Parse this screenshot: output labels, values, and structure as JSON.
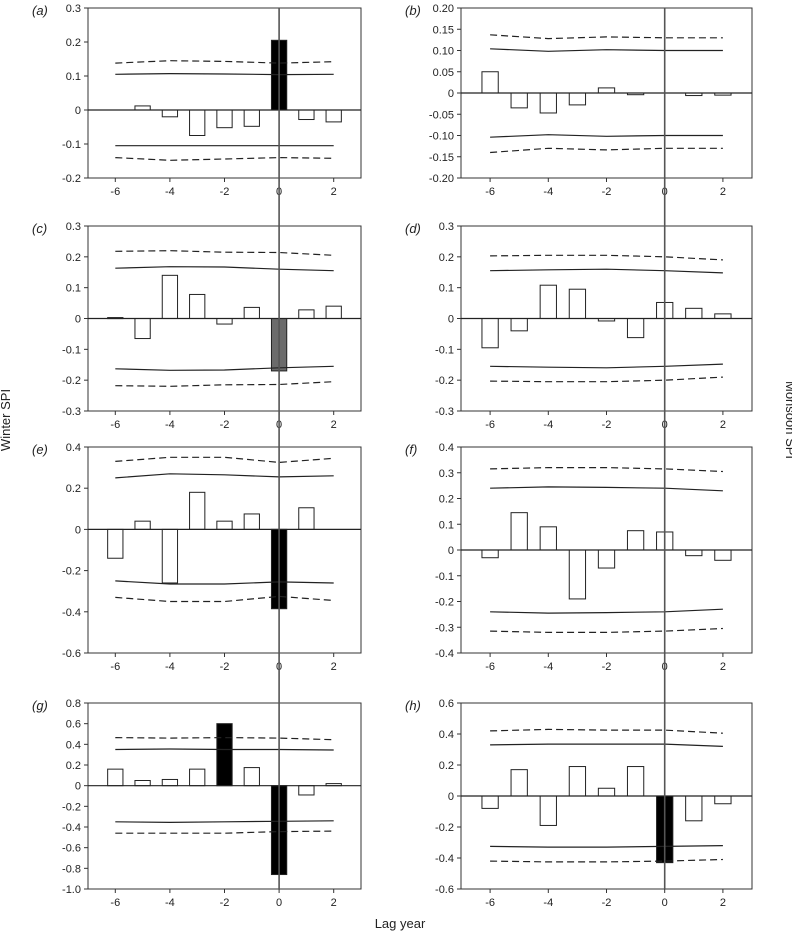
{
  "figure": {
    "ylabel_left": "Winter SPI",
    "ylabel_right": "Monsoon SPI",
    "xlabel": "Lag year"
  },
  "chart_data": [
    {
      "type": "bar",
      "panel_label": "(a)",
      "column": "left",
      "xticks": [
        -6,
        -4,
        -2,
        0,
        2
      ],
      "ylim": [
        -0.2,
        0.3
      ],
      "yticks": [
        -0.2,
        -0.1,
        0,
        0.1,
        0.2,
        0.3
      ],
      "ytick_labels": [
        "-0.2",
        "-0.1",
        "0",
        "0.1",
        "0.2",
        "0.3"
      ],
      "lags": [
        -5,
        -4,
        -3,
        -2,
        -1,
        0,
        1,
        2
      ],
      "values": [
        0.012,
        -0.02,
        -0.075,
        -0.052,
        -0.048,
        0.205,
        -0.028,
        -0.035
      ],
      "bar_colors": [
        "#ffffff",
        "#ffffff",
        "#ffffff",
        "#ffffff",
        "#ffffff",
        "#000000",
        "#ffffff",
        "#ffffff"
      ],
      "ci95_upper": [
        [
          -6,
          0.105
        ],
        [
          -4,
          0.107
        ],
        [
          -2,
          0.106
        ],
        [
          0,
          0.104
        ],
        [
          2,
          0.105
        ]
      ],
      "ci95_lower": [
        [
          -6,
          -0.105
        ],
        [
          -4,
          -0.105
        ],
        [
          -2,
          -0.105
        ],
        [
          0,
          -0.105
        ],
        [
          2,
          -0.105
        ]
      ],
      "ci99_upper": [
        [
          -6,
          0.138
        ],
        [
          -4,
          0.145
        ],
        [
          -2,
          0.143
        ],
        [
          0,
          0.138
        ],
        [
          2,
          0.142
        ]
      ],
      "ci99_lower": [
        [
          -6,
          -0.14
        ],
        [
          -4,
          -0.148
        ],
        [
          -2,
          -0.144
        ],
        [
          0,
          -0.14
        ],
        [
          2,
          -0.142
        ]
      ]
    },
    {
      "type": "bar",
      "panel_label": "(b)",
      "column": "right",
      "xticks": [
        -6,
        -4,
        -2,
        0,
        2
      ],
      "ylim": [
        -0.2,
        0.2
      ],
      "yticks": [
        -0.2,
        -0.15,
        -0.1,
        -0.05,
        0,
        0.05,
        0.1,
        0.15,
        0.2
      ],
      "ytick_labels": [
        "-0.20",
        "-0.15",
        "-0.10",
        "-0.05",
        "0",
        "0.05",
        "0.10",
        "0.15",
        "0.20"
      ],
      "lags": [
        -6,
        -5,
        -4,
        -3,
        -2,
        -1,
        0,
        1,
        2
      ],
      "values": [
        0.05,
        -0.035,
        -0.047,
        -0.028,
        0.012,
        -0.004,
        0,
        -0.006,
        -0.005
      ],
      "bar_colors": [
        "#ffffff",
        "#ffffff",
        "#ffffff",
        "#ffffff",
        "#ffffff",
        "#ffffff",
        "#ffffff",
        "#ffffff",
        "#ffffff"
      ],
      "ci95_upper": [
        [
          -6,
          0.104
        ],
        [
          -4,
          0.098
        ],
        [
          -2,
          0.102
        ],
        [
          0,
          0.1
        ],
        [
          2,
          0.1
        ]
      ],
      "ci95_lower": [
        [
          -6,
          -0.104
        ],
        [
          -4,
          -0.098
        ],
        [
          -2,
          -0.102
        ],
        [
          0,
          -0.1
        ],
        [
          2,
          -0.1
        ]
      ],
      "ci99_upper": [
        [
          -6,
          0.137
        ],
        [
          -4,
          0.128
        ],
        [
          -2,
          0.132
        ],
        [
          0,
          0.13
        ],
        [
          2,
          0.13
        ]
      ],
      "ci99_lower": [
        [
          -6,
          -0.14
        ],
        [
          -4,
          -0.13
        ],
        [
          -2,
          -0.134
        ],
        [
          0,
          -0.13
        ],
        [
          2,
          -0.13
        ]
      ]
    },
    {
      "type": "bar",
      "panel_label": "(c)",
      "column": "left",
      "xticks": [
        -6,
        -4,
        -2,
        0,
        2
      ],
      "ylim": [
        -0.3,
        0.3
      ],
      "yticks": [
        -0.3,
        -0.2,
        -0.1,
        0,
        0.1,
        0.2,
        0.3
      ],
      "ytick_labels": [
        "-0.3",
        "-0.2",
        "-0.1",
        "0",
        "0.1",
        "0.2",
        "0.3"
      ],
      "lags": [
        -6,
        -5,
        -4,
        -3,
        -2,
        -1,
        0,
        1,
        2
      ],
      "values": [
        0.003,
        -0.065,
        0.14,
        0.078,
        -0.018,
        0.036,
        -0.17,
        0.028,
        0.04
      ],
      "bar_colors": [
        "#ffffff",
        "#ffffff",
        "#ffffff",
        "#ffffff",
        "#ffffff",
        "#ffffff",
        "#6b6b6b",
        "#ffffff",
        "#ffffff"
      ],
      "ci95_upper": [
        [
          -6,
          0.163
        ],
        [
          -4,
          0.168
        ],
        [
          -2,
          0.167
        ],
        [
          0,
          0.16
        ],
        [
          2,
          0.155
        ]
      ],
      "ci95_lower": [
        [
          -6,
          -0.163
        ],
        [
          -4,
          -0.168
        ],
        [
          -2,
          -0.167
        ],
        [
          0,
          -0.16
        ],
        [
          2,
          -0.155
        ]
      ],
      "ci99_upper": [
        [
          -6,
          0.218
        ],
        [
          -4,
          0.22
        ],
        [
          -2,
          0.215
        ],
        [
          0,
          0.214
        ],
        [
          2,
          0.205
        ]
      ],
      "ci99_lower": [
        [
          -6,
          -0.218
        ],
        [
          -4,
          -0.22
        ],
        [
          -2,
          -0.215
        ],
        [
          0,
          -0.214
        ],
        [
          2,
          -0.205
        ]
      ]
    },
    {
      "type": "bar",
      "panel_label": "(d)",
      "column": "right",
      "xticks": [
        -6,
        -4,
        -2,
        0,
        2
      ],
      "ylim": [
        -0.3,
        0.3
      ],
      "yticks": [
        -0.3,
        -0.2,
        -0.1,
        0,
        0.1,
        0.2,
        0.3
      ],
      "ytick_labels": [
        "-0.3",
        "-0.2",
        "-0.1",
        "0",
        "0.1",
        "0.2",
        "0.3"
      ],
      "lags": [
        -6,
        -5,
        -4,
        -3,
        -2,
        -1,
        0,
        1,
        2
      ],
      "values": [
        -0.095,
        -0.04,
        0.108,
        0.095,
        -0.008,
        -0.062,
        0.052,
        0.033,
        0.015
      ],
      "bar_colors": [
        "#ffffff",
        "#ffffff",
        "#ffffff",
        "#ffffff",
        "#ffffff",
        "#ffffff",
        "#ffffff",
        "#ffffff",
        "#ffffff"
      ],
      "ci95_upper": [
        [
          -6,
          0.155
        ],
        [
          -4,
          0.158
        ],
        [
          -2,
          0.16
        ],
        [
          0,
          0.155
        ],
        [
          2,
          0.148
        ]
      ],
      "ci95_lower": [
        [
          -6,
          -0.155
        ],
        [
          -4,
          -0.158
        ],
        [
          -2,
          -0.16
        ],
        [
          0,
          -0.155
        ],
        [
          2,
          -0.148
        ]
      ],
      "ci99_upper": [
        [
          -6,
          0.203
        ],
        [
          -4,
          0.205
        ],
        [
          -2,
          0.205
        ],
        [
          0,
          0.2
        ],
        [
          2,
          0.19
        ]
      ],
      "ci99_lower": [
        [
          -6,
          -0.203
        ],
        [
          -4,
          -0.205
        ],
        [
          -2,
          -0.205
        ],
        [
          0,
          -0.2
        ],
        [
          2,
          -0.19
        ]
      ]
    },
    {
      "type": "bar",
      "panel_label": "(e)",
      "column": "left",
      "xticks": [
        -6,
        -4,
        -2,
        0,
        2
      ],
      "ylim": [
        -0.6,
        0.4
      ],
      "yticks": [
        -0.6,
        -0.4,
        -0.2,
        0,
        0.2,
        0.4
      ],
      "ytick_labels": [
        "-0.6",
        "-0.4",
        "-0.2",
        "0",
        "0.2",
        "0.4"
      ],
      "lags": [
        -6,
        -5,
        -4,
        -3,
        -2,
        -1,
        0,
        1,
        2
      ],
      "values": [
        -0.14,
        0.04,
        -0.26,
        0.18,
        0.04,
        0.075,
        -0.385,
        0.105,
        0
      ],
      "bar_colors": [
        "#ffffff",
        "#ffffff",
        "#ffffff",
        "#ffffff",
        "#ffffff",
        "#ffffff",
        "#000000",
        "#ffffff",
        "#ffffff"
      ],
      "ci95_upper": [
        [
          -6,
          0.25
        ],
        [
          -4,
          0.27
        ],
        [
          -2,
          0.265
        ],
        [
          0,
          0.255
        ],
        [
          2,
          0.26
        ]
      ],
      "ci95_lower": [
        [
          -6,
          -0.25
        ],
        [
          -4,
          -0.265
        ],
        [
          -2,
          -0.265
        ],
        [
          0,
          -0.255
        ],
        [
          2,
          -0.26
        ]
      ],
      "ci99_upper": [
        [
          -6,
          0.33
        ],
        [
          -4,
          0.35
        ],
        [
          -2,
          0.35
        ],
        [
          0,
          0.325
        ],
        [
          2,
          0.345
        ]
      ],
      "ci99_lower": [
        [
          -6,
          -0.33
        ],
        [
          -4,
          -0.35
        ],
        [
          -2,
          -0.35
        ],
        [
          0,
          -0.325
        ],
        [
          2,
          -0.345
        ]
      ]
    },
    {
      "type": "bar",
      "panel_label": "(f)",
      "column": "right",
      "xticks": [
        -6,
        -4,
        -2,
        0,
        2
      ],
      "ylim": [
        -0.4,
        0.4
      ],
      "yticks": [
        -0.4,
        -0.3,
        -0.2,
        -0.1,
        0,
        0.1,
        0.2,
        0.3,
        0.4
      ],
      "ytick_labels": [
        "-0.4",
        "-0.3",
        "-0.2",
        "-0.1",
        "0",
        "0.1",
        "0.2",
        "0.3",
        "0.4"
      ],
      "lags": [
        -6,
        -5,
        -4,
        -3,
        -2,
        -1,
        0,
        1,
        2
      ],
      "values": [
        -0.03,
        0.145,
        0.09,
        -0.19,
        -0.07,
        0.075,
        0.07,
        -0.022,
        -0.04
      ],
      "bar_colors": [
        "#ffffff",
        "#ffffff",
        "#ffffff",
        "#ffffff",
        "#ffffff",
        "#ffffff",
        "#ffffff",
        "#ffffff",
        "#ffffff"
      ],
      "ci95_upper": [
        [
          -6,
          0.24
        ],
        [
          -4,
          0.245
        ],
        [
          -2,
          0.243
        ],
        [
          0,
          0.24
        ],
        [
          2,
          0.23
        ]
      ],
      "ci95_lower": [
        [
          -6,
          -0.24
        ],
        [
          -4,
          -0.245
        ],
        [
          -2,
          -0.243
        ],
        [
          0,
          -0.24
        ],
        [
          2,
          -0.23
        ]
      ],
      "ci99_upper": [
        [
          -6,
          0.315
        ],
        [
          -4,
          0.32
        ],
        [
          -2,
          0.32
        ],
        [
          0,
          0.315
        ],
        [
          2,
          0.305
        ]
      ],
      "ci99_lower": [
        [
          -6,
          -0.315
        ],
        [
          -4,
          -0.32
        ],
        [
          -2,
          -0.32
        ],
        [
          0,
          -0.315
        ],
        [
          2,
          -0.305
        ]
      ]
    },
    {
      "type": "bar",
      "panel_label": "(g)",
      "column": "left",
      "xticks": [
        -6,
        -4,
        -2,
        0,
        2
      ],
      "ylim": [
        -1.0,
        0.8
      ],
      "yticks": [
        -1.0,
        -0.8,
        -0.6,
        -0.4,
        -0.2,
        0,
        0.2,
        0.4,
        0.6,
        0.8
      ],
      "ytick_labels": [
        "-1.0",
        "-0.8",
        "-0.6",
        "-0.4",
        "-0.2",
        "0",
        "0.2",
        "0.4",
        "0.6",
        "0.8"
      ],
      "lags": [
        -6,
        -5,
        -4,
        -3,
        -2,
        -1,
        0,
        1,
        2
      ],
      "values": [
        0.16,
        0.05,
        0.06,
        0.16,
        0.6,
        0.175,
        -0.86,
        -0.09,
        0.02
      ],
      "bar_colors": [
        "#ffffff",
        "#ffffff",
        "#ffffff",
        "#ffffff",
        "#000000",
        "#ffffff",
        "#000000",
        "#ffffff",
        "#ffffff"
      ],
      "ci95_upper": [
        [
          -6,
          0.35
        ],
        [
          -4,
          0.355
        ],
        [
          -2,
          0.35
        ],
        [
          0,
          0.35
        ],
        [
          2,
          0.345
        ]
      ],
      "ci95_lower": [
        [
          -6,
          -0.35
        ],
        [
          -4,
          -0.355
        ],
        [
          -2,
          -0.35
        ],
        [
          0,
          -0.345
        ],
        [
          2,
          -0.34
        ]
      ],
      "ci99_upper": [
        [
          -6,
          0.465
        ],
        [
          -4,
          0.46
        ],
        [
          -2,
          0.465
        ],
        [
          0,
          0.46
        ],
        [
          2,
          0.445
        ]
      ],
      "ci99_lower": [
        [
          -6,
          -0.46
        ],
        [
          -4,
          -0.46
        ],
        [
          -2,
          -0.46
        ],
        [
          0,
          -0.445
        ],
        [
          2,
          -0.44
        ]
      ]
    },
    {
      "type": "bar",
      "panel_label": "(h)",
      "column": "right",
      "xticks": [
        -6,
        -4,
        -2,
        0,
        2
      ],
      "ylim": [
        -0.6,
        0.6
      ],
      "yticks": [
        -0.6,
        -0.4,
        -0.2,
        0,
        0.2,
        0.4,
        0.6
      ],
      "ytick_labels": [
        "-0.6",
        "-0.4",
        "-0.2",
        "0",
        "0.2",
        "0.4",
        "0.6"
      ],
      "lags": [
        -6,
        -5,
        -4,
        -3,
        -2,
        -1,
        0,
        1,
        2
      ],
      "values": [
        -0.08,
        0.17,
        -0.19,
        0.19,
        0.05,
        0.19,
        -0.43,
        -0.16,
        -0.05
      ],
      "bar_colors": [
        "#ffffff",
        "#ffffff",
        "#ffffff",
        "#ffffff",
        "#ffffff",
        "#ffffff",
        "#000000",
        "#ffffff",
        "#ffffff"
      ],
      "ci95_upper": [
        [
          -6,
          0.33
        ],
        [
          -4,
          0.335
        ],
        [
          -2,
          0.335
        ],
        [
          0,
          0.335
        ],
        [
          2,
          0.32
        ]
      ],
      "ci95_lower": [
        [
          -6,
          -0.325
        ],
        [
          -4,
          -0.33
        ],
        [
          -2,
          -0.33
        ],
        [
          0,
          -0.325
        ],
        [
          2,
          -0.32
        ]
      ],
      "ci99_upper": [
        [
          -6,
          0.42
        ],
        [
          -4,
          0.43
        ],
        [
          -2,
          0.425
        ],
        [
          0,
          0.425
        ],
        [
          2,
          0.405
        ]
      ],
      "ci99_lower": [
        [
          -6,
          -0.42
        ],
        [
          -4,
          -0.425
        ],
        [
          -2,
          -0.425
        ],
        [
          0,
          -0.42
        ],
        [
          2,
          -0.41
        ]
      ]
    }
  ]
}
